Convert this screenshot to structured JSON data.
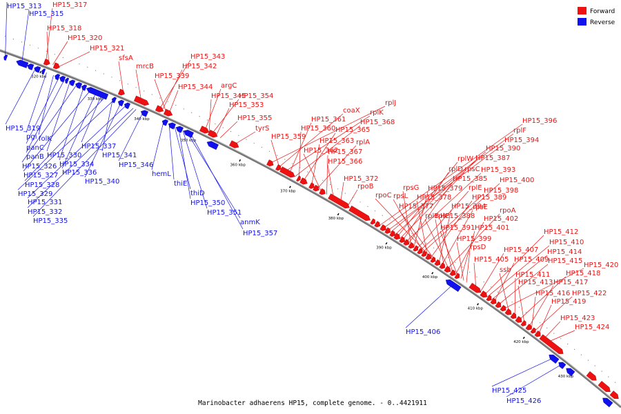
{
  "caption": "Marinobacter adhaerens HP15, complete genome. - 0..4421911",
  "legend": {
    "forward": {
      "label": "Forward",
      "color": "#ee1111"
    },
    "reverse": {
      "label": "Reverse",
      "color": "#1111ee"
    }
  },
  "colors": {
    "forward": "#ee1111",
    "reverse": "#1111ee",
    "backbone": "#888888"
  },
  "ticks": [
    "320 kbp",
    "330 kbp",
    "340 kbp",
    "350 kbp",
    "360 kbp",
    "370 kbp",
    "380 kbp",
    "390 kbp",
    "400 kbp",
    "410 kbp",
    "420 kbp",
    "430 kbp"
  ],
  "forward_genes": [
    "HP15_317",
    "HP15_318",
    "HP15_320",
    "HP15_321",
    "sfsA",
    "mrcB",
    "HP15_343",
    "HP15_342",
    "HP15_339",
    "HP15_344",
    "argC",
    "HP15_345",
    "HP15_354",
    "HP15_353",
    "HP15_355",
    "tyrS",
    "rplJ",
    "coaX",
    "rplK",
    "HP15_361",
    "HP15_368",
    "HP15_360",
    "HP15_365",
    "HP15_359",
    "HP15_363",
    "rplA",
    "HP15_362",
    "HP15_367",
    "HP15_366",
    "HP15_372",
    "rpoB",
    "HP15_396",
    "rplF",
    "HP15_394",
    "HP15_390",
    "HP15_387",
    "rplW",
    "rpsC",
    "rplD",
    "HP15_393",
    "HP15_385",
    "rpsG",
    "HP15_379",
    "rplE",
    "HP15_398",
    "HP15_400",
    "rpsL",
    "HP15_378",
    "HP15_389",
    "rpoC",
    "HP15_377",
    "HP15_384",
    "rpsE",
    "rplC",
    "rpoA",
    "rplB",
    "HP15_388",
    "HP15_402",
    "HP15_391",
    "HP15_401",
    "HP15_399",
    "rpsD",
    "HP15_405",
    "HP15_407",
    "HP15_412",
    "HP15_410",
    "HP15_414",
    "HP15_409",
    "HP15_415",
    "HP15_420",
    "ssb",
    "HP15_411",
    "HP15_418",
    "HP15_413",
    "HP15_417",
    "HP15_416",
    "HP15_422",
    "HP15_419",
    "HP15_423",
    "HP15_424"
  ],
  "reverse_genes": [
    "HP15_313",
    "HP15_315",
    "HP15_319",
    "pgi",
    "folK",
    "panC",
    "panB",
    "HP15_330",
    "HP15_326",
    "HP15_334",
    "HP15_327",
    "HP15_336",
    "HP15_337",
    "HP15_341",
    "HP15_328",
    "HP15_340",
    "HP15_346",
    "HP15_329",
    "HP15_331",
    "HP15_332",
    "HP15_335",
    "hemL",
    "thiE",
    "thiD",
    "HP15_350",
    "HP15_351",
    "anmK",
    "HP15_357",
    "HP15_406",
    "HP15_425",
    "HP15_426"
  ]
}
